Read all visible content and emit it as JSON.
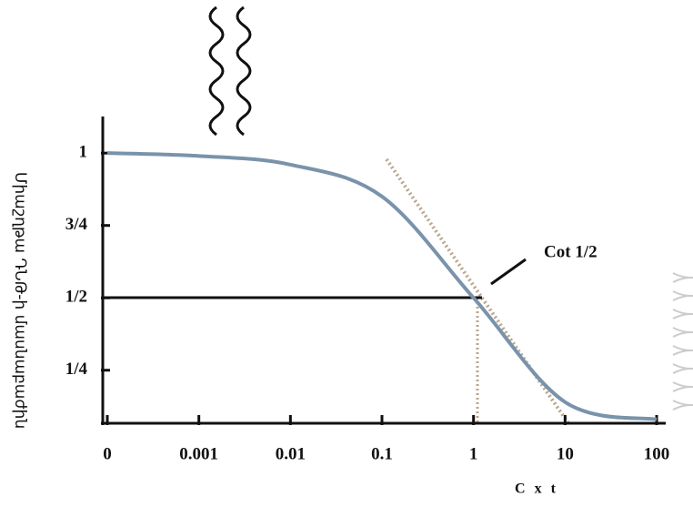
{
  "chart_data": {
    "type": "line",
    "categories": [
      "0",
      "0.001",
      "0.01",
      "0.1",
      "1",
      "10",
      "100"
    ],
    "series": [
      {
        "color": "#7a93ab",
        "values": [
          1,
          0.99,
          0.96,
          0.85,
          0.5,
          0.14,
          0.08
        ]
      }
    ],
    "ylim": [
      0.07,
      1.12
    ],
    "yticks": [
      {
        "value": 0.25,
        "label": "1/4"
      },
      {
        "value": 0.5,
        "label": "1/2"
      },
      {
        "value": 0.75,
        "label": "3/4"
      },
      1
    ],
    "y_label": "Միաշղթա ԴՆԹ-ի մասնաբաժին",
    "x_label": "C x t",
    "annotation": "Cot 1/2"
  }
}
